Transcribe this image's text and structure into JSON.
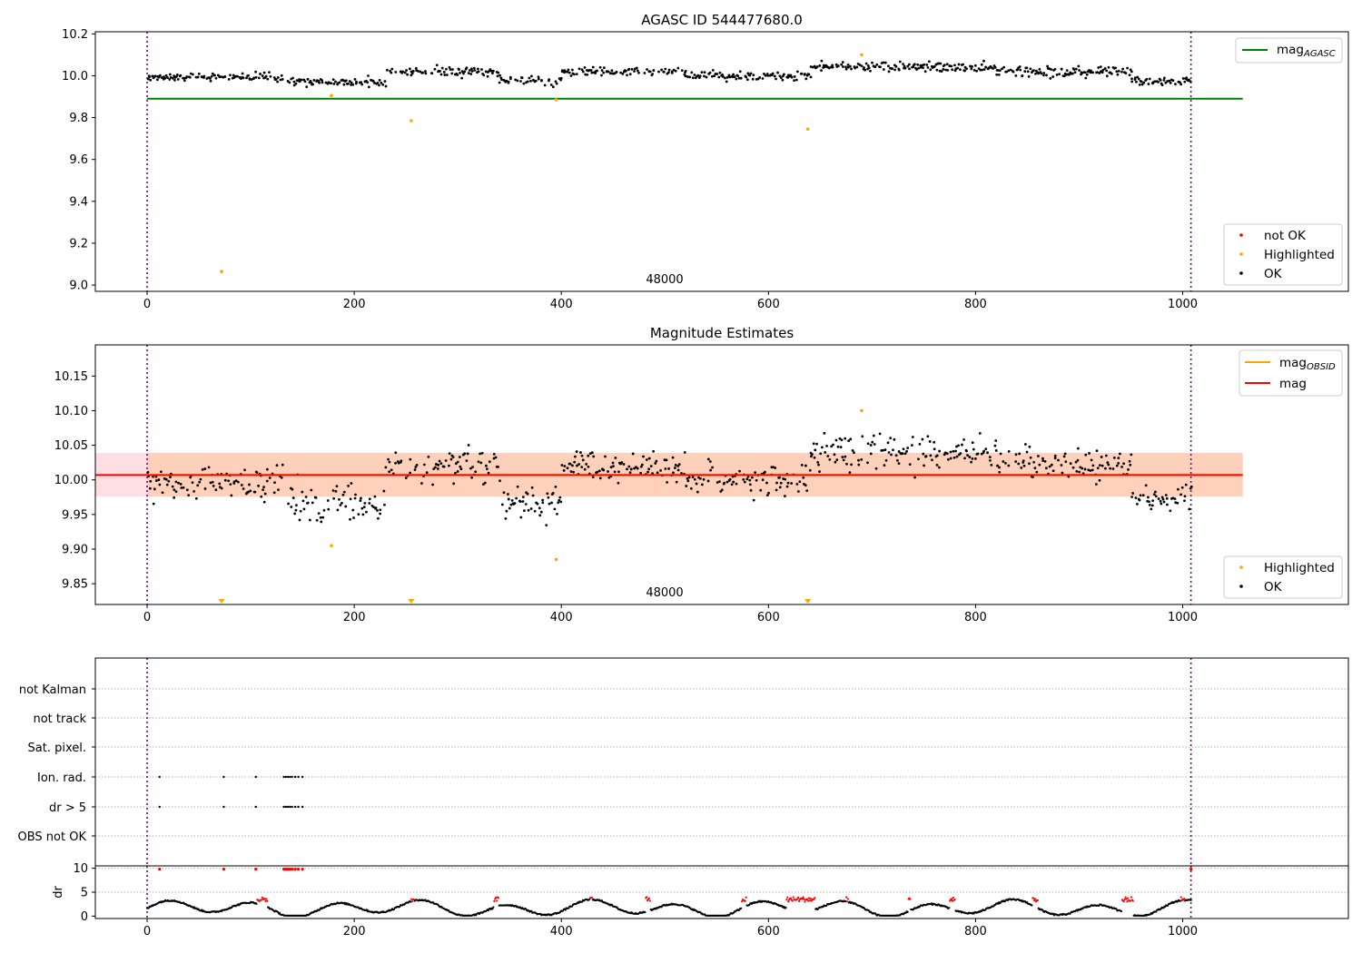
{
  "figure": {
    "panel1": {
      "title": "AGASC ID 544477680.0",
      "obsid_label": "48000",
      "xlim": [
        -50,
        1160
      ],
      "ylim": [
        8.97,
        10.21
      ],
      "xticks": [
        0,
        200,
        400,
        600,
        800,
        1000
      ],
      "xtick_labels": [
        "0",
        "200",
        "400",
        "600",
        "800",
        "1000"
      ],
      "yticks": [
        9.0,
        9.2,
        9.4,
        9.6,
        9.8,
        10.0,
        10.2
      ],
      "ytick_labels": [
        "9.0",
        "9.2",
        "9.4",
        "9.6",
        "9.8",
        "10.0",
        "10.2"
      ],
      "legend_upper": [
        {
          "label": "mag",
          "sub": "AGASC",
          "color": "#008000"
        }
      ],
      "legend_lower": [
        {
          "label": "not OK",
          "color": "#ff0000"
        },
        {
          "label": "Highlighted",
          "color": "#ffa500"
        },
        {
          "label": "OK",
          "color": "#000000"
        }
      ]
    },
    "panel2": {
      "title": "Magnitude Estimates",
      "obsid_label": "48000",
      "xlim": [
        -50,
        1160
      ],
      "ylim": [
        9.82,
        10.195
      ],
      "xticks": [
        0,
        200,
        400,
        600,
        800,
        1000
      ],
      "xtick_labels": [
        "0",
        "200",
        "400",
        "600",
        "800",
        "1000"
      ],
      "yticks": [
        9.85,
        9.9,
        9.95,
        10.0,
        10.05,
        10.1,
        10.15
      ],
      "ytick_labels": [
        "9.85",
        "9.90",
        "9.95",
        "10.00",
        "10.05",
        "10.10",
        "10.15"
      ],
      "legend_upper": [
        {
          "label": "mag",
          "sub": "OBSID",
          "color": "#ffa500"
        },
        {
          "label": "mag",
          "sub": "",
          "color": "#ff0000"
        }
      ],
      "legend_lower": [
        {
          "label": "Highlighted",
          "color": "#ffa500"
        },
        {
          "label": "OK",
          "color": "#000000"
        }
      ]
    },
    "panel3": {
      "flag_labels": [
        "not Kalman",
        "not track",
        "Sat. pixel.",
        "Ion. rad.",
        "dr > 5",
        "OBS not OK"
      ],
      "xticks": [
        0,
        200,
        400,
        600,
        800,
        1000
      ],
      "xtick_labels": [
        "0",
        "200",
        "400",
        "600",
        "800",
        "1000"
      ]
    },
    "panel4": {
      "ylabel": "dr",
      "yticks": [
        0,
        5,
        10
      ],
      "ytick_labels": [
        "0",
        "5",
        "10"
      ]
    }
  },
  "chart_data": [
    {
      "type": "scatter",
      "title": "AGASC ID 544477680.0",
      "annotation": "48000",
      "ylim": [
        8.97,
        10.21
      ],
      "mag_agasc": 9.89,
      "obs_boundaries": [
        0,
        1008
      ],
      "series": [
        {
          "name": "OK",
          "color": "#000000",
          "segments": [
            {
              "x_start": 0,
              "x_end": 130,
              "mean": 9.995,
              "jitter": 0.018
            },
            {
              "x_start": 135,
              "x_end": 230,
              "mean": 9.97,
              "jitter": 0.018
            },
            {
              "x_start": 230,
              "x_end": 340,
              "mean": 10.02,
              "jitter": 0.02
            },
            {
              "x_start": 340,
              "x_end": 400,
              "mean": 9.975,
              "jitter": 0.02
            },
            {
              "x_start": 400,
              "x_end": 520,
              "mean": 10.02,
              "jitter": 0.02
            },
            {
              "x_start": 520,
              "x_end": 640,
              "mean": 10.0,
              "jitter": 0.02
            },
            {
              "x_start": 640,
              "x_end": 820,
              "mean": 10.04,
              "jitter": 0.02
            },
            {
              "x_start": 820,
              "x_end": 950,
              "mean": 10.02,
              "jitter": 0.02
            },
            {
              "x_start": 950,
              "x_end": 1008,
              "mean": 9.975,
              "jitter": 0.018
            }
          ]
        },
        {
          "name": "Highlighted",
          "color": "#ffa500",
          "points": [
            [
              72,
              9.065
            ],
            [
              178,
              9.905
            ],
            [
              255,
              9.785
            ],
            [
              395,
              9.885
            ],
            [
              638,
              9.745
            ],
            [
              690,
              10.1
            ]
          ]
        }
      ]
    },
    {
      "type": "scatter",
      "title": "Magnitude Estimates",
      "annotation": "48000",
      "ylim": [
        9.82,
        10.195
      ],
      "mag_obsid": 10.007,
      "mag": 10.007,
      "mag_band": [
        9.976,
        10.039
      ],
      "obs_boundaries": [
        0,
        1008
      ],
      "series": [
        {
          "name": "OK",
          "color": "#000000",
          "segments": [
            {
              "x_start": 0,
              "x_end": 130,
              "mean": 9.995,
              "jitter": 0.022
            },
            {
              "x_start": 135,
              "x_end": 230,
              "mean": 9.965,
              "jitter": 0.022
            },
            {
              "x_start": 230,
              "x_end": 340,
              "mean": 10.02,
              "jitter": 0.022
            },
            {
              "x_start": 340,
              "x_end": 400,
              "mean": 9.97,
              "jitter": 0.022
            },
            {
              "x_start": 400,
              "x_end": 520,
              "mean": 10.02,
              "jitter": 0.022
            },
            {
              "x_start": 520,
              "x_end": 640,
              "mean": 10.0,
              "jitter": 0.02
            },
            {
              "x_start": 640,
              "x_end": 820,
              "mean": 10.04,
              "jitter": 0.022
            },
            {
              "x_start": 820,
              "x_end": 950,
              "mean": 10.02,
              "jitter": 0.02
            },
            {
              "x_start": 950,
              "x_end": 1008,
              "mean": 9.975,
              "jitter": 0.022
            }
          ]
        },
        {
          "name": "Highlighted",
          "color": "#ffa500",
          "points": [
            [
              178,
              9.905
            ],
            [
              395,
              9.885
            ],
            [
              690,
              10.1
            ]
          ]
        },
        {
          "name": "Highlighted (below range)",
          "color": "#ffa500",
          "marker": "triangle-down",
          "points": [
            [
              72,
              9.82
            ],
            [
              255,
              9.82
            ],
            [
              638,
              9.82
            ]
          ]
        }
      ]
    },
    {
      "type": "scatter",
      "flags": {
        "Ion. rad.": [
          12,
          74,
          105,
          132,
          134,
          136,
          138,
          140,
          143,
          146,
          150
        ],
        "dr > 5": [
          12,
          74,
          105,
          132,
          134,
          136,
          138,
          140,
          143,
          146,
          150
        ]
      }
    },
    {
      "type": "scatter",
      "ylabel": "dr",
      "ylim": [
        -0.5,
        10.5
      ],
      "dr_clipped": [
        12,
        74,
        105,
        132,
        134,
        136,
        138,
        140,
        143,
        146,
        150,
        1008
      ],
      "red_ranges": [
        [
          106,
          116
        ],
        [
          255,
          258
        ],
        [
          335,
          340
        ],
        [
          428,
          430
        ],
        [
          481,
          486
        ],
        [
          574,
          579
        ],
        [
          617,
          645
        ],
        [
          675,
          677
        ],
        [
          735,
          737
        ],
        [
          775,
          780
        ],
        [
          855,
          860
        ],
        [
          941,
          952
        ],
        [
          998,
          1002
        ]
      ]
    }
  ]
}
